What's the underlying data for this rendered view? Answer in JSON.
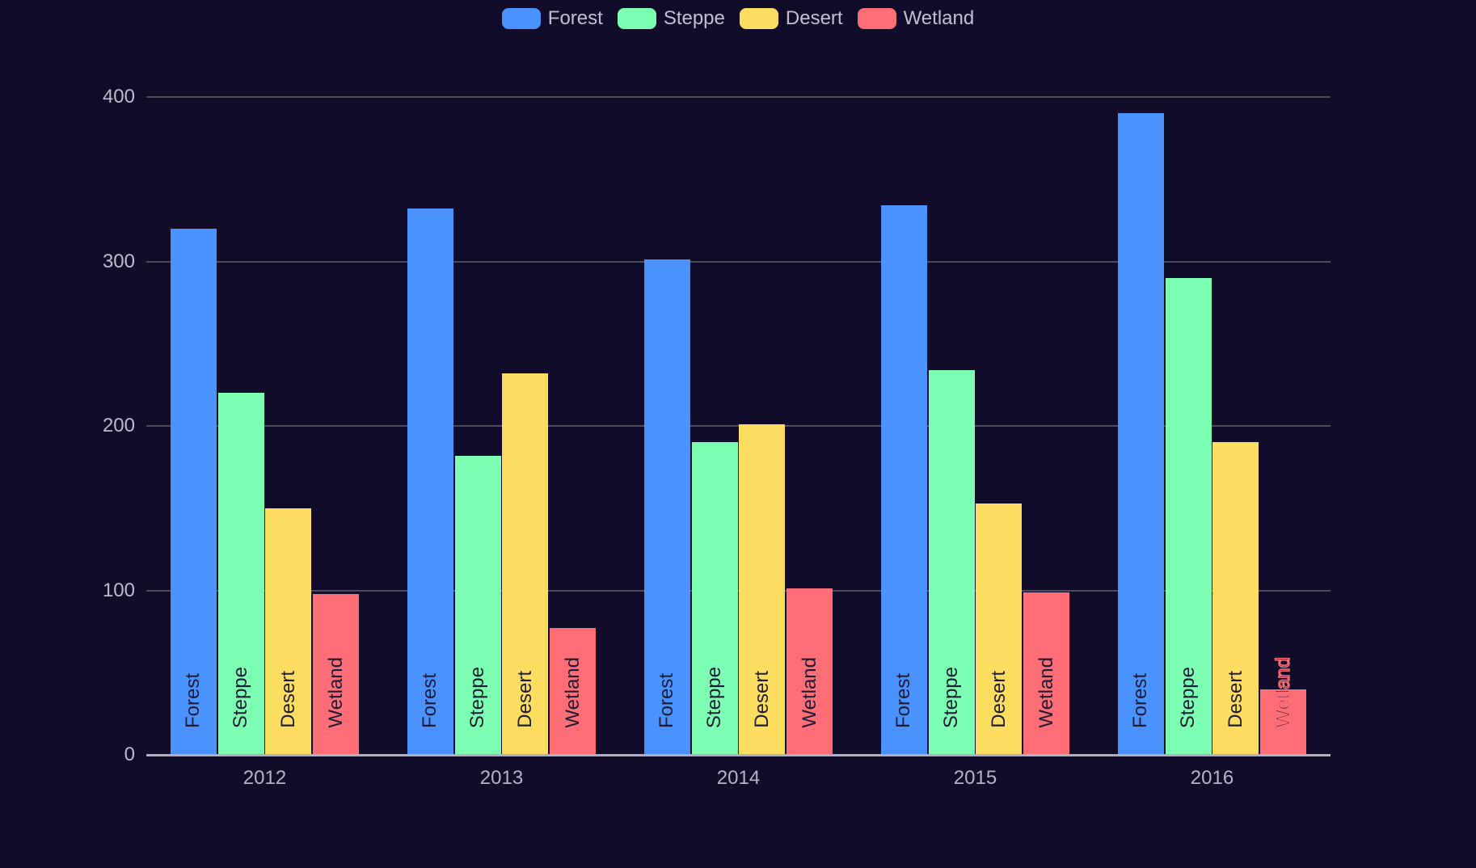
{
  "chart_data": {
    "type": "bar",
    "title": "",
    "xlabel": "",
    "ylabel": "",
    "categories": [
      "2012",
      "2013",
      "2014",
      "2015",
      "2016"
    ],
    "series": [
      {
        "name": "Forest",
        "color": "#4992ff",
        "values": [
          320,
          332,
          301,
          334,
          390
        ]
      },
      {
        "name": "Steppe",
        "color": "#7cffb2",
        "values": [
          220,
          182,
          190,
          234,
          290
        ]
      },
      {
        "name": "Desert",
        "color": "#fddd60",
        "values": [
          150,
          232,
          201,
          153,
          190
        ]
      },
      {
        "name": "Wetland",
        "color": "#ff6e76",
        "values": [
          98,
          77,
          101,
          99,
          40
        ]
      }
    ],
    "ylim": [
      0,
      400
    ],
    "yticks": [
      0,
      100,
      200,
      300,
      400
    ],
    "grid": true,
    "legend_position": "top-center",
    "legend_items": [
      "Forest",
      "Steppe",
      "Desert",
      "Wetland"
    ],
    "bar_labels": "series name rendered rotated 90deg inside bottom of each bar",
    "overflow_label_note": "Wetland 2016 label overflows bar top with red outline"
  },
  "colors": {
    "background": "#100c2a",
    "grid_line": "#4d4a5b",
    "axis_line": "#b0afc2",
    "axis_text": "#bdbccd",
    "legend_text": "#c1c0d1",
    "bar_label_text": "#1e1c34"
  }
}
